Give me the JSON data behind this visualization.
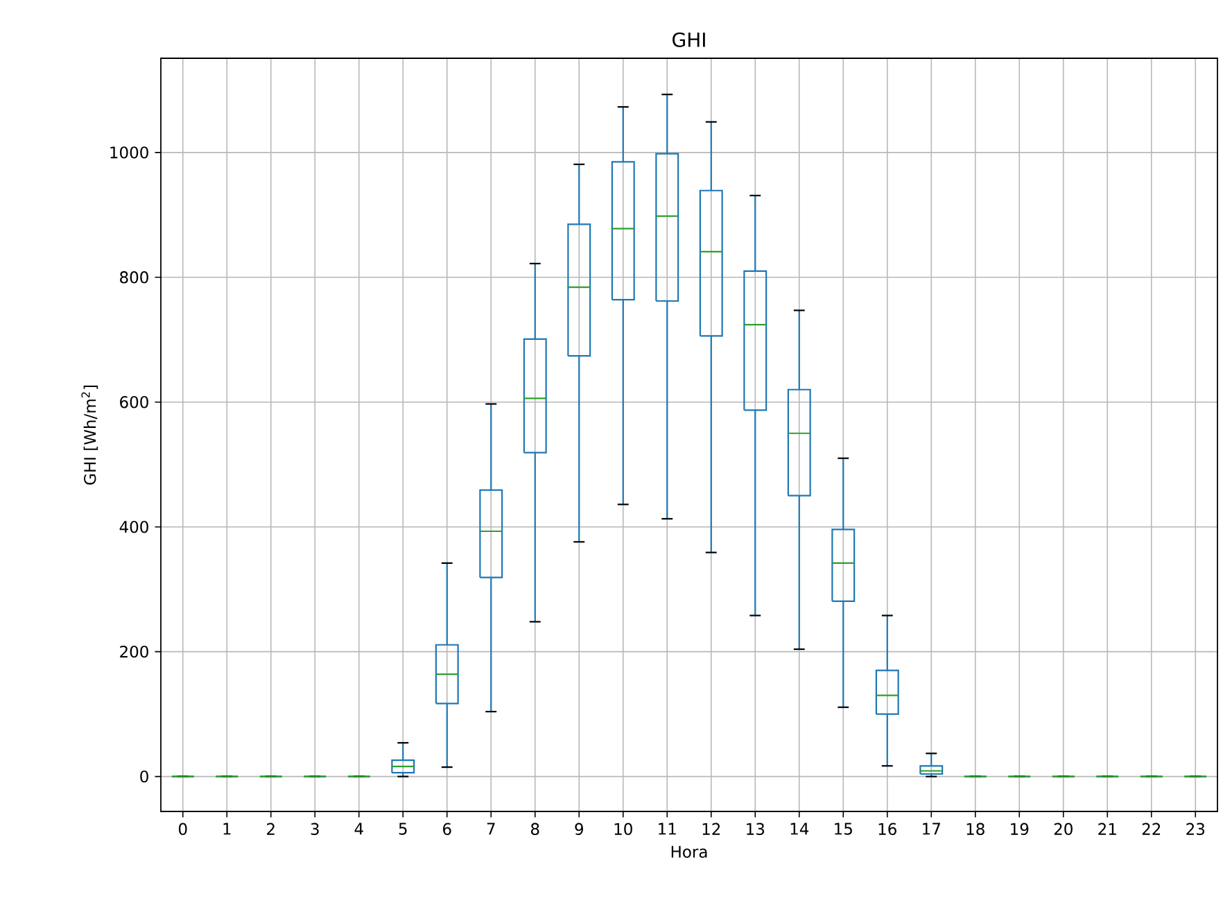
{
  "chart_data": {
    "type": "box",
    "title": "GHI",
    "xlabel": "Hora",
    "ylabel": "GHI [Wh/m$^{2}$]",
    "categories": [
      "0",
      "1",
      "2",
      "3",
      "4",
      "5",
      "6",
      "7",
      "8",
      "9",
      "10",
      "11",
      "12",
      "13",
      "14",
      "15",
      "16",
      "17",
      "18",
      "19",
      "20",
      "21",
      "22",
      "23"
    ],
    "ylim": [
      -56,
      1151
    ],
    "yticks": [
      0,
      200,
      400,
      600,
      800,
      1000
    ],
    "grid": true,
    "series": [
      {
        "color": "#1f77b4",
        "boxes": [
          {
            "low": 0,
            "q1": 0,
            "median": 0,
            "q3": 0,
            "high": 0
          },
          {
            "low": 0,
            "q1": 0,
            "median": 0,
            "q3": 0,
            "high": 0
          },
          {
            "low": 0,
            "q1": 0,
            "median": 0,
            "q3": 0,
            "high": 0
          },
          {
            "low": 0,
            "q1": 0,
            "median": 0,
            "q3": 0,
            "high": 0
          },
          {
            "low": 0,
            "q1": 0,
            "median": 0,
            "q3": 0,
            "high": 0
          },
          {
            "low": 0,
            "q1": 6,
            "median": 16,
            "q3": 26,
            "high": 54
          },
          {
            "low": 15,
            "q1": 117,
            "median": 164,
            "q3": 211,
            "high": 342
          },
          {
            "low": 104,
            "q1": 319,
            "median": 393,
            "q3": 459,
            "high": 597
          },
          {
            "low": 248,
            "q1": 519,
            "median": 606,
            "q3": 701,
            "high": 822
          },
          {
            "low": 376,
            "q1": 674,
            "median": 784,
            "q3": 885,
            "high": 981
          },
          {
            "low": 436,
            "q1": 764,
            "median": 878,
            "q3": 985,
            "high": 1073
          },
          {
            "low": 413,
            "q1": 762,
            "median": 898,
            "q3": 998,
            "high": 1093
          },
          {
            "low": 359,
            "q1": 706,
            "median": 841,
            "q3": 939,
            "high": 1049
          },
          {
            "low": 258,
            "q1": 587,
            "median": 724,
            "q3": 810,
            "high": 931
          },
          {
            "low": 204,
            "q1": 450,
            "median": 550,
            "q3": 620,
            "high": 747
          },
          {
            "low": 111,
            "q1": 281,
            "median": 342,
            "q3": 396,
            "high": 510
          },
          {
            "low": 17,
            "q1": 100,
            "median": 130,
            "q3": 170,
            "high": 258
          },
          {
            "low": 0,
            "q1": 4,
            "median": 9,
            "q3": 17,
            "high": 37
          },
          {
            "low": 0,
            "q1": 0,
            "median": 0,
            "q3": 0,
            "high": 0
          },
          {
            "low": 0,
            "q1": 0,
            "median": 0,
            "q3": 0,
            "high": 0
          },
          {
            "low": 0,
            "q1": 0,
            "median": 0,
            "q3": 0,
            "high": 0
          },
          {
            "low": 0,
            "q1": 0,
            "median": 0,
            "q3": 0,
            "high": 0
          },
          {
            "low": 0,
            "q1": 0,
            "median": 0,
            "q3": 0,
            "high": 0
          },
          {
            "low": 0,
            "q1": 0,
            "median": 0,
            "q3": 0,
            "high": 0
          }
        ]
      }
    ]
  }
}
